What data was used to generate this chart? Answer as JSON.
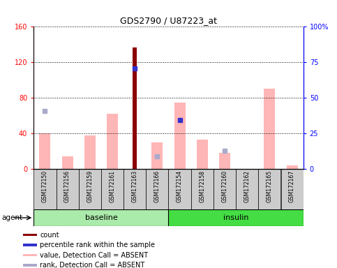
{
  "title": "GDS2790 / U87223_at",
  "samples": [
    "GSM172150",
    "GSM172156",
    "GSM172159",
    "GSM172161",
    "GSM172163",
    "GSM172166",
    "GSM172154",
    "GSM172158",
    "GSM172160",
    "GSM172162",
    "GSM172165",
    "GSM172167"
  ],
  "groups": [
    "baseline",
    "baseline",
    "baseline",
    "baseline",
    "baseline",
    "baseline",
    "insulin",
    "insulin",
    "insulin",
    "insulin",
    "insulin",
    "insulin"
  ],
  "value_absent": [
    40,
    14,
    38,
    62,
    0,
    30,
    75,
    33,
    18,
    0,
    90,
    4
  ],
  "rank_absent_y": [
    65,
    0,
    0,
    0,
    0,
    14,
    0,
    0,
    20,
    0,
    0,
    0
  ],
  "count": [
    0,
    0,
    0,
    0,
    137,
    0,
    0,
    0,
    0,
    0,
    0,
    0
  ],
  "percentile_rank_y": [
    0,
    0,
    0,
    0,
    113,
    0,
    55,
    0,
    0,
    0,
    0,
    0
  ],
  "left_yticks": [
    0,
    40,
    80,
    120,
    160
  ],
  "right_yticks": [
    0,
    25,
    50,
    75,
    100
  ],
  "right_ylabels": [
    "0",
    "25",
    "50",
    "75",
    "100%"
  ],
  "ylim": [
    0,
    160
  ],
  "color_count": "#8B0000",
  "color_percentile": "#3333CC",
  "color_value_absent": "#FFB6B6",
  "color_rank_absent": "#AAAACC",
  "color_baseline_bg": "#AAEAAA",
  "color_insulin_bg": "#44DD44",
  "agent_label": "agent",
  "baseline_label": "baseline",
  "insulin_label": "insulin",
  "legend_items": [
    "count",
    "percentile rank within the sample",
    "value, Detection Call = ABSENT",
    "rank, Detection Call = ABSENT"
  ],
  "legend_colors": [
    "#8B0000",
    "#3333CC",
    "#FFB6B6",
    "#AAAACC"
  ]
}
